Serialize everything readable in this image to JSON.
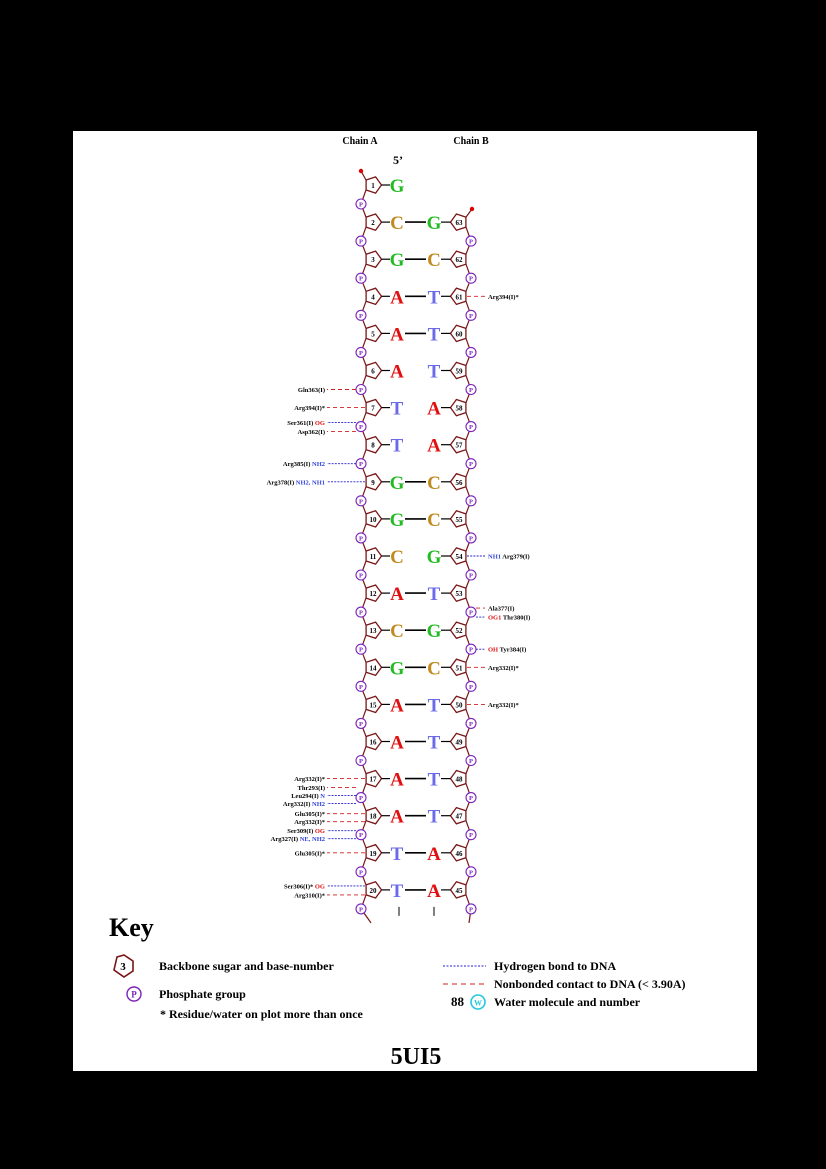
{
  "header": {
    "chain_a": "Chain A",
    "chain_b": "Chain B",
    "five_prime": "5’"
  },
  "colors": {
    "G": "#22bb22",
    "C": "#c08a1e",
    "A": "#e01010",
    "T": "#6b6bea",
    "backbone": "#7a1515",
    "phosphate": "#7a22bb",
    "hbond": "#2222cc",
    "nonbond": "#d02020",
    "atom_hbond": "#3344dd",
    "atom_red": "#e01010"
  },
  "pairs": [
    {
      "a": 1,
      "ab": "G",
      "b": null,
      "bb": ""
    },
    {
      "a": 2,
      "ab": "C",
      "b": 63,
      "bb": "G"
    },
    {
      "a": 3,
      "ab": "G",
      "b": 62,
      "bb": "C"
    },
    {
      "a": 4,
      "ab": "A",
      "b": 61,
      "bb": "T"
    },
    {
      "a": 5,
      "ab": "A",
      "b": 60,
      "bb": "T"
    },
    {
      "a": 6,
      "ab": "A",
      "b": 59,
      "bb": "T"
    },
    {
      "a": 7,
      "ab": "T",
      "b": 58,
      "bb": "A"
    },
    {
      "a": 8,
      "ab": "T",
      "b": 57,
      "bb": "A"
    },
    {
      "a": 9,
      "ab": "G",
      "b": 56,
      "bb": "C"
    },
    {
      "a": 10,
      "ab": "G",
      "b": 55,
      "bb": "C"
    },
    {
      "a": 11,
      "ab": "C",
      "b": 54,
      "bb": "G"
    },
    {
      "a": 12,
      "ab": "A",
      "b": 53,
      "bb": "T"
    },
    {
      "a": 13,
      "ab": "C",
      "b": 52,
      "bb": "G"
    },
    {
      "a": 14,
      "ab": "G",
      "b": 51,
      "bb": "C"
    },
    {
      "a": 15,
      "ab": "A",
      "b": 50,
      "bb": "T"
    },
    {
      "a": 16,
      "ab": "A",
      "b": 49,
      "bb": "T"
    },
    {
      "a": 17,
      "ab": "A",
      "b": 48,
      "bb": "T"
    },
    {
      "a": 18,
      "ab": "A",
      "b": 47,
      "bb": "T"
    },
    {
      "a": 19,
      "ab": "T",
      "b": 46,
      "bb": "A"
    },
    {
      "a": 20,
      "ab": "T",
      "b": 45,
      "bb": "A"
    }
  ],
  "pair_bonds": [
    true,
    true,
    true,
    true,
    true,
    false,
    false,
    false,
    true,
    true,
    false,
    true,
    true,
    true,
    true,
    true,
    true,
    true,
    true,
    true
  ],
  "interactions": [
    {
      "side": "B",
      "row": 4,
      "anchor": "sugar",
      "res": "Arg394(I)*",
      "atom": "",
      "type": "nonbond"
    },
    {
      "side": "A",
      "row": 6,
      "anchor": "phos",
      "res": "Gln363(I)",
      "atom": "",
      "type": "nonbond"
    },
    {
      "side": "A",
      "row": 7,
      "anchor": "sugar",
      "res": "Arg394(I)*",
      "atom": "",
      "type": "nonbond"
    },
    {
      "side": "A",
      "row": 7,
      "anchor": "phos",
      "res": "Ser361(I)",
      "atom": "OG",
      "type": "hbond",
      "dy": -4
    },
    {
      "side": "A",
      "row": 7,
      "anchor": "phos",
      "res": "Asp362(I)",
      "atom": "",
      "type": "nonbond",
      "dy": 5
    },
    {
      "side": "A",
      "row": 8,
      "anchor": "phos",
      "res": "Arg385(I)",
      "atom": "NH2",
      "type": "hbond"
    },
    {
      "side": "A",
      "row": 9,
      "anchor": "sugar",
      "res": "Arg378(I)",
      "atom": "NH2, NH1",
      "type": "hbond"
    },
    {
      "side": "B",
      "row": 11,
      "anchor": "sugar",
      "res": "Arg379(I)",
      "atom": "NH1",
      "type": "hbond"
    },
    {
      "side": "B",
      "row": 12,
      "anchor": "phos",
      "res": "Ala377(I)",
      "atom": "",
      "type": "nonbond",
      "dy": -4
    },
    {
      "side": "B",
      "row": 12,
      "anchor": "phos",
      "res": "Thr380(I)",
      "atom": "OG1",
      "type": "hbond",
      "dy": 5
    },
    {
      "side": "B",
      "row": 13,
      "anchor": "phos",
      "res": "Tyr384(I)",
      "atom": "OH",
      "type": "hbond"
    },
    {
      "side": "B",
      "row": 14,
      "anchor": "sugar",
      "res": "Arg332(I)*",
      "atom": "",
      "type": "nonbond"
    },
    {
      "side": "B",
      "row": 15,
      "anchor": "sugar",
      "res": "Arg332(I)*",
      "atom": "",
      "type": "nonbond"
    },
    {
      "side": "A",
      "row": 17,
      "anchor": "sugar",
      "res": "Arg332(I)*",
      "atom": "",
      "type": "nonbond"
    },
    {
      "side": "A",
      "row": 17,
      "anchor": "phos",
      "res": "Thr293(I)",
      "atom": "",
      "type": "nonbond",
      "dy": -10
    },
    {
      "side": "A",
      "row": 17,
      "anchor": "phos",
      "res": "Leu294(I)",
      "atom": "N",
      "type": "hbond",
      "dy": -2
    },
    {
      "side": "A",
      "row": 17,
      "anchor": "phos",
      "res": "Arg332(I)",
      "atom": "NH2",
      "type": "hbond",
      "dy": 6
    },
    {
      "side": "A",
      "row": 18,
      "anchor": "sugar",
      "res": "Glu305(I)*",
      "atom": "",
      "type": "nonbond",
      "dy": -2
    },
    {
      "side": "A",
      "row": 18,
      "anchor": "sugar",
      "res": "Arg332(I)*",
      "atom": "",
      "type": "nonbond",
      "dy": 6
    },
    {
      "side": "A",
      "row": 18,
      "anchor": "phos",
      "res": "Ser309(I)",
      "atom": "OG",
      "type": "hbond",
      "dy": -4
    },
    {
      "side": "A",
      "row": 18,
      "anchor": "phos",
      "res": "Arg327(I)",
      "atom": "NE, NH2",
      "type": "hbond",
      "dy": 4
    },
    {
      "side": "A",
      "row": 19,
      "anchor": "sugar",
      "res": "Glu305(I)*",
      "atom": "",
      "type": "nonbond"
    },
    {
      "side": "A",
      "row": 20,
      "anchor": "sugar",
      "res": "Ser306(I)*",
      "atom": "OG",
      "type": "hbond",
      "dy": -4
    },
    {
      "side": "A",
      "row": 20,
      "anchor": "sugar",
      "res": "Arg310(I)*",
      "atom": "",
      "type": "nonbond",
      "dy": 5
    }
  ],
  "key": {
    "title": "Key",
    "sugar_example": "3",
    "phosphate_symbol": "P",
    "sugar_label": "Backbone sugar and base-number",
    "phosphate_label": "Phosphate group",
    "asterisk_note": "* Residue/water on plot more than once",
    "hbond_label": "Hydrogen bond to DNA",
    "nonbond_label": "Nonbonded contact to DNA (< 3.90A)",
    "water_number": "88",
    "water_symbol": "W",
    "water_label": "Water molecule and number"
  },
  "pdb_id": "5UI5"
}
